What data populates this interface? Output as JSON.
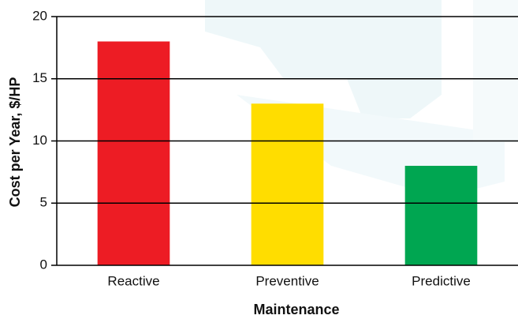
{
  "chart_data": {
    "type": "bar",
    "x_label": "Maintenance",
    "y_label": "Cost per Year, $/HP",
    "categories": [
      "Reactive",
      "Preventive",
      "Predictive"
    ],
    "values": [
      18,
      13,
      8
    ],
    "colors": [
      "#ed1c24",
      "#ffdd00",
      "#00a651"
    ],
    "ylim": [
      0,
      20
    ],
    "yticks": [
      0,
      5,
      10,
      15,
      20
    ],
    "grid": true
  }
}
